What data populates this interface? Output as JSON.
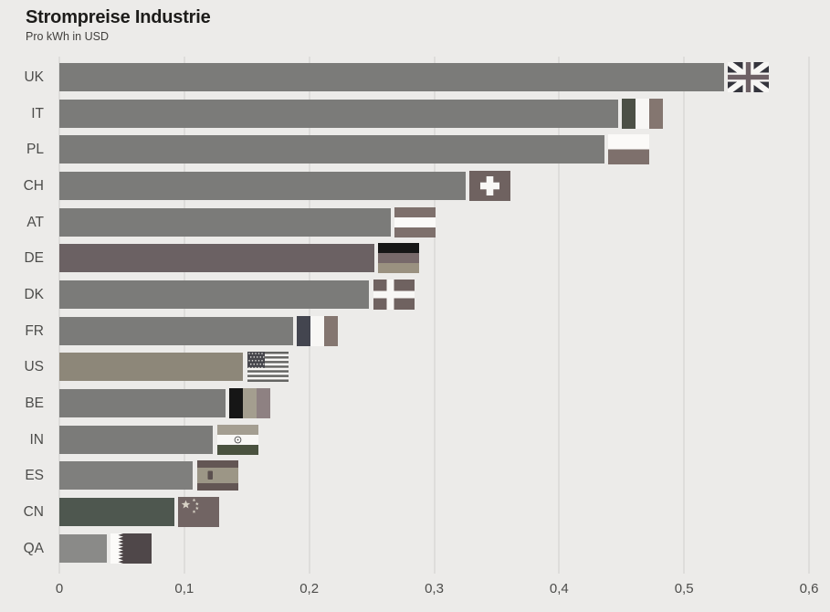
{
  "header": {
    "title": "Strompreise Industrie",
    "subtitle": "Pro kWh in USD"
  },
  "chart_data": {
    "type": "bar",
    "orientation": "horizontal",
    "title": "Strompreise Industrie",
    "subtitle": "Pro kWh in USD",
    "unit": "USD pro kWh",
    "categories": [
      "UK",
      "IT",
      "PL",
      "CH",
      "AT",
      "DE",
      "DK",
      "FR",
      "US",
      "BE",
      "IN",
      "ES",
      "CN",
      "QA"
    ],
    "values": [
      0.532,
      0.447,
      0.436,
      0.325,
      0.265,
      0.252,
      0.248,
      0.187,
      0.147,
      0.133,
      0.123,
      0.107,
      0.092,
      0.038
    ],
    "bar_colors": [
      "#7b7b79",
      "#7b7b79",
      "#7b7b79",
      "#7b7b79",
      "#7b7b79",
      "#6b6163",
      "#7b7b79",
      "#7b7b79",
      "#8d8779",
      "#7b7b79",
      "#7b7b79",
      "#7f7f7d",
      "#4e574f",
      "#8a8a88"
    ],
    "flag_icons": [
      "flag-uk-icon",
      "flag-it-icon",
      "flag-pl-icon",
      "flag-ch-icon",
      "flag-at-icon",
      "flag-de-icon",
      "flag-dk-icon",
      "flag-fr-icon",
      "flag-us-icon",
      "flag-be-icon",
      "flag-in-icon",
      "flag-es-icon",
      "flag-cn-icon",
      "flag-qa-icon"
    ],
    "xlim": [
      0,
      0.6
    ],
    "x_tick_values": [
      0,
      0.1,
      0.2,
      0.3,
      0.4,
      0.5,
      0.6
    ],
    "x_tick_labels": [
      "0",
      "0,1",
      "0,2",
      "0,3",
      "0,4",
      "0,5",
      "0,6"
    ],
    "grid": "vertical",
    "legend": "none"
  },
  "colors": {
    "background": "#ecebe9",
    "gridline": "#dedddb",
    "text": "#4c4c4a",
    "title_text": "#1d1c1a",
    "bar_default": "#7b7b79",
    "bar_highlight_de": "#6b6163",
    "bar_highlight_us": "#8d8779",
    "bar_highlight_cn": "#4e574f"
  },
  "flags": {
    "UK": {
      "field": "#34343c",
      "cross": "#6e6166",
      "white": "#f7f6f4"
    },
    "IT": {
      "bands": [
        "#4c5046",
        "#f8f7f5",
        "#847670"
      ]
    },
    "PL": {
      "bands": [
        "#fbfaf8",
        "#7e706c"
      ]
    },
    "CH": {
      "field": "#6f6260",
      "cross": "#f8f7f5"
    },
    "AT": {
      "bands": [
        "#7e706c",
        "#fbfaf8",
        "#7e706c"
      ]
    },
    "DE": {
      "bands": [
        "#161616",
        "#77696a",
        "#9a9180"
      ]
    },
    "DK": {
      "field": "#6f6260",
      "cross": "#f8f7f5"
    },
    "FR": {
      "bands": [
        "#43454f",
        "#f8f7f5",
        "#847670"
      ]
    },
    "US": {
      "canton": "#46464c",
      "stripe": "#646462",
      "white": "#f8f7f5",
      "star": "#e8e7e3"
    },
    "BE": {
      "bands": [
        "#161616",
        "#a49e8f",
        "#8e8182"
      ]
    },
    "IN": {
      "bands": [
        "#a49e91",
        "#f8f7f5",
        "#4a523f"
      ],
      "chakra": "#4c4c4c"
    },
    "ES": {
      "bands": [
        "#635654",
        "#9c9686",
        "#635654"
      ],
      "emblem": "#5b504f"
    },
    "CN": {
      "field": "#716463",
      "star": "#d8d3c6"
    },
    "QA": {
      "white": "#fcfbf9",
      "maroon": "#4f4749"
    }
  }
}
